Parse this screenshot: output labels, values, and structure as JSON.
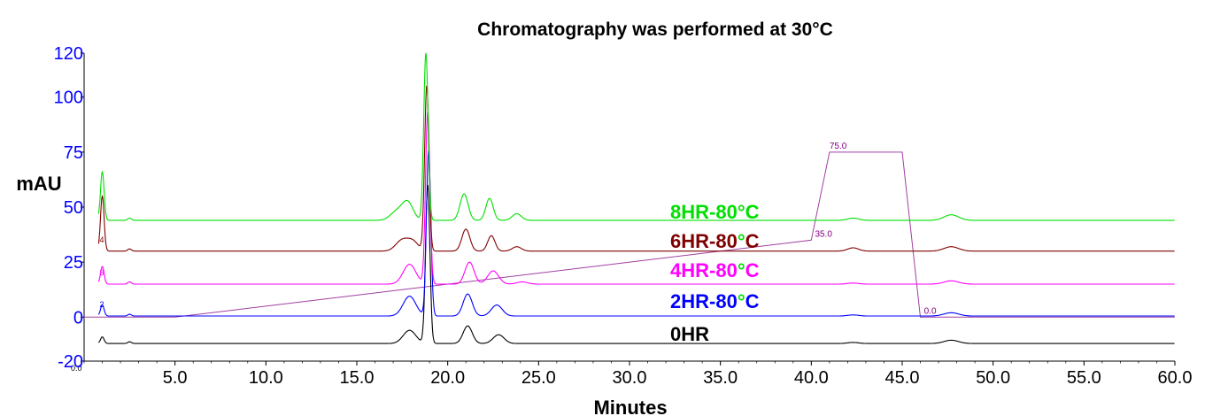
{
  "chart_data": {
    "type": "line",
    "title": "Chromatography was performed at 30°C",
    "xlabel": "Minutes",
    "ylabel": "mAU",
    "xlim": [
      0,
      60
    ],
    "ylim": [
      -20,
      120
    ],
    "x_ticks": [
      "5.0",
      "10.0",
      "15.0",
      "20.0",
      "25.0",
      "30.0",
      "35.0",
      "40.0",
      "45.0",
      "50.0",
      "55.0",
      "60.0"
    ],
    "x_tick_values": [
      5,
      10,
      15,
      20,
      25,
      30,
      35,
      40,
      45,
      50,
      55,
      60
    ],
    "y_ticks": [
      "-20",
      "0",
      "25",
      "50",
      "75",
      "100",
      "120"
    ],
    "y_tick_values": [
      -20,
      0,
      25,
      50,
      75,
      100,
      120
    ],
    "x_origin_label": "0.0",
    "series": [
      {
        "name": "0HR",
        "color": "#000000",
        "baseline": -12,
        "peak_marker": "",
        "peaks": [
          [
            1.0,
            3,
            0.1
          ],
          [
            2.5,
            0.8,
            0.1
          ],
          [
            17.9,
            6,
            0.35
          ],
          [
            18.9,
            72,
            0.12
          ],
          [
            21.1,
            8,
            0.25
          ],
          [
            22.8,
            4,
            0.3
          ],
          [
            42.3,
            0.5,
            0.3
          ],
          [
            47.7,
            1.5,
            0.4
          ]
        ]
      },
      {
        "name": "2HR-80°C",
        "color": "#0000ff",
        "baseline": 0.5,
        "peak_marker": "2",
        "peaks": [
          [
            1.0,
            5,
            0.1
          ],
          [
            2.5,
            0.8,
            0.1
          ],
          [
            17.9,
            9,
            0.35
          ],
          [
            18.95,
            75,
            0.12
          ],
          [
            21.1,
            10,
            0.25
          ],
          [
            22.7,
            5,
            0.3
          ],
          [
            42.3,
            0.5,
            0.3
          ],
          [
            47.7,
            1.5,
            0.4
          ]
        ]
      },
      {
        "name": "4HR-80°C",
        "color": "#ff00ff",
        "baseline": 15,
        "peak_marker": "3",
        "peaks": [
          [
            1.0,
            8,
            0.1
          ],
          [
            2.5,
            1,
            0.1
          ],
          [
            17.9,
            9,
            0.35
          ],
          [
            18.9,
            78,
            0.12
          ],
          [
            21.2,
            10,
            0.25
          ],
          [
            22.5,
            6,
            0.3
          ],
          [
            24.1,
            1,
            0.3
          ],
          [
            42.3,
            0.5,
            0.3
          ],
          [
            47.7,
            1.5,
            0.4
          ]
        ]
      },
      {
        "name": "6HR-80°C",
        "color": "#800000",
        "baseline": 30,
        "peak_marker": "4",
        "peaks": [
          [
            1.0,
            25,
            0.1
          ],
          [
            2.5,
            1,
            0.1
          ],
          [
            17.5,
            5,
            0.35
          ],
          [
            18.1,
            4,
            0.3
          ],
          [
            18.85,
            75,
            0.12
          ],
          [
            21.0,
            10,
            0.22
          ],
          [
            22.4,
            7,
            0.2
          ],
          [
            23.8,
            2,
            0.25
          ],
          [
            42.3,
            1.5,
            0.3
          ],
          [
            47.7,
            2,
            0.4
          ]
        ]
      },
      {
        "name": "8HR-80°C",
        "color": "#00e000",
        "baseline": 44,
        "peak_marker": "",
        "peaks": [
          [
            1.0,
            22,
            0.1
          ],
          [
            2.5,
            1,
            0.1
          ],
          [
            17.2,
            4,
            0.35
          ],
          [
            17.8,
            8,
            0.3
          ],
          [
            18.8,
            76,
            0.12
          ],
          [
            20.9,
            12,
            0.22
          ],
          [
            22.3,
            10,
            0.2
          ],
          [
            23.8,
            3,
            0.25
          ],
          [
            42.3,
            1,
            0.3
          ],
          [
            47.7,
            2.5,
            0.4
          ]
        ]
      }
    ],
    "gradient": {
      "color": "#a040a0",
      "x": [
        0,
        5,
        40,
        41,
        45,
        46,
        60
      ],
      "y": [
        0,
        0,
        35,
        75,
        75,
        0,
        0
      ],
      "labels": [
        {
          "text": "75.0",
          "x": 41.0,
          "y": 75
        },
        {
          "text": "35.0",
          "x": 40.2,
          "y": 35
        },
        {
          "text": "0.0",
          "x": 46.2,
          "y": 0
        }
      ]
    }
  },
  "legend": [
    {
      "label": "8HR-80°C",
      "prefix": "8HR-80",
      "suffix": "C",
      "color": "#00e000",
      "deg_color": "#00e000"
    },
    {
      "label": "6HR-80°C",
      "prefix": "6HR-80",
      "suffix": "C",
      "color": "#800000",
      "deg_color": "#00e000"
    },
    {
      "label": "4HR-80°C",
      "prefix": "4HR-80",
      "suffix": "C",
      "color": "#ff00ff",
      "deg_color": "#00e000"
    },
    {
      "label": "2HR-80°C",
      "prefix": "2HR-80",
      "suffix": "C",
      "color": "#0000ff",
      "deg_color": "#00e000"
    },
    {
      "label": "0HR",
      "prefix": "0HR",
      "suffix": "",
      "color": "#000000",
      "deg_color": ""
    }
  ]
}
